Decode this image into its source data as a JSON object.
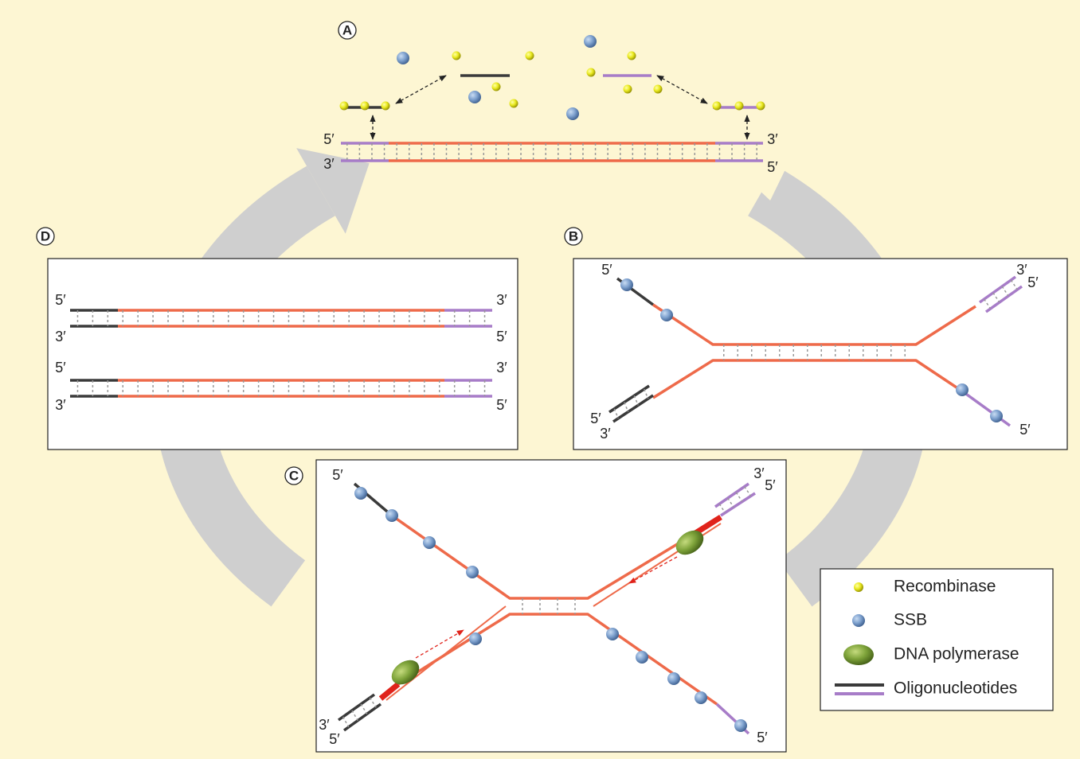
{
  "panels": [
    {
      "label": "A",
      "end_labels": [
        "5′",
        "3′",
        "3′",
        "5′"
      ]
    },
    {
      "label": "B",
      "end_labels": [
        "5′",
        "3′",
        "5′",
        "5′",
        "3′",
        "5′"
      ]
    },
    {
      "label": "C",
      "end_labels": [
        "5′",
        "3′",
        "5′",
        "3′",
        "5′",
        "5′"
      ]
    },
    {
      "label": "D",
      "end_labels": [
        "5′",
        "3′",
        "3′",
        "5′",
        "5′",
        "3′",
        "3′",
        "5′"
      ]
    }
  ],
  "legend": [
    {
      "name": "Recombinase"
    },
    {
      "name": "SSB"
    },
    {
      "name": "DNA polymerase"
    },
    {
      "name": "Oligonucleotides"
    }
  ]
}
